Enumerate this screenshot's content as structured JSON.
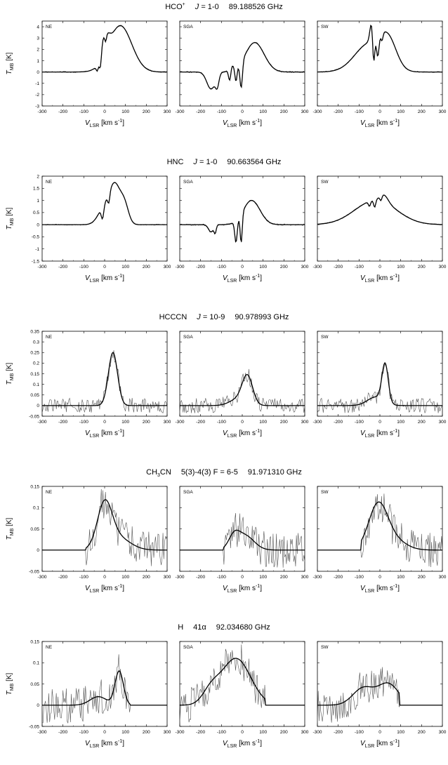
{
  "chart_data": [
    {
      "type": "line",
      "molecule": "HCO",
      "molecule_sup": "+",
      "transition_prefix": "J",
      "transition": "= 1-0",
      "frequency": "89.188526 GHz",
      "ylabel": "T",
      "ylabel_sub": "MB",
      "ylabel_unit": " [K]",
      "xlabel": "V",
      "xlabel_sub": "LSR",
      "xlabel_unit": " [km s",
      "xlabel_sup": "-1",
      "xlabel_end": "]",
      "xlim": [
        -300,
        300
      ],
      "ylim": [
        -3,
        4.5
      ],
      "xticks": [
        -300,
        -200,
        -100,
        0,
        100,
        200,
        300
      ],
      "yticks": [
        -3,
        -2,
        -1,
        0,
        1,
        2,
        3,
        4
      ],
      "panels": [
        {
          "name": "NE",
          "noise": 0.05,
          "components": [
            [
              75,
              4.1,
              55
            ],
            [
              10,
              1.2,
              15
            ],
            [
              -10,
              1.0,
              10
            ]
          ],
          "absorptions": [
            [
              -35,
              0.5,
              5
            ],
            [
              -20,
              1.2,
              5
            ],
            [
              5,
              0.6,
              4
            ]
          ],
          "cutoff": null
        },
        {
          "name": "SGA",
          "noise": 0.06,
          "components": [
            [
              60,
              2.6,
              45
            ],
            [
              -150,
              -1.5,
              20
            ],
            [
              -55,
              0.7,
              10
            ]
          ],
          "absorptions": [
            [
              -120,
              1.0,
              8
            ],
            [
              -60,
              1.4,
              6
            ],
            [
              -30,
              1.2,
              5
            ],
            [
              -5,
              2.3,
              6
            ]
          ],
          "cutoff": null
        },
        {
          "name": "SW",
          "noise": 0.05,
          "components": [
            [
              -50,
              2.5,
              70
            ],
            [
              40,
              2.3,
              40
            ],
            [
              -40,
              1.6,
              8
            ]
          ],
          "absorptions": [
            [
              -30,
              2.6,
              5
            ],
            [
              -10,
              1.8,
              6
            ],
            [
              10,
              0.7,
              5
            ]
          ],
          "cutoff": null
        }
      ]
    },
    {
      "type": "line",
      "molecule": "HNC",
      "molecule_sup": "",
      "transition_prefix": "J",
      "transition": "= 1-0",
      "frequency": "90.663564 GHz",
      "ylabel": "T",
      "ylabel_sub": "MB",
      "ylabel_unit": " [K]",
      "xlabel": "V",
      "xlabel_sub": "LSR",
      "xlabel_unit": " [km s",
      "xlabel_sup": "-1",
      "xlabel_end": "]",
      "xlim": [
        -300,
        300
      ],
      "ylim": [
        -1.5,
        2
      ],
      "xticks": [
        -300,
        -200,
        -100,
        0,
        100,
        200,
        300
      ],
      "yticks": [
        -1.5,
        -1,
        -0.5,
        0,
        0.5,
        1,
        1.5,
        2
      ],
      "panels": [
        {
          "name": "NE",
          "noise": 0.02,
          "components": [
            [
              50,
              1.5,
              25
            ],
            [
              95,
              0.8,
              20
            ],
            [
              0,
              0.7,
              30
            ]
          ],
          "absorptions": [
            [
              -10,
              0.5,
              6
            ],
            [
              20,
              0.4,
              5
            ]
          ],
          "cutoff": null
        },
        {
          "name": "SGA",
          "noise": 0.03,
          "components": [
            [
              45,
              1.0,
              40
            ],
            [
              -150,
              -0.3,
              12
            ]
          ],
          "absorptions": [
            [
              -130,
              0.3,
              5
            ],
            [
              -30,
              0.9,
              6
            ],
            [
              -5,
              1.2,
              5
            ]
          ],
          "cutoff": null
        },
        {
          "name": "SW",
          "noise": 0.02,
          "components": [
            [
              -20,
              1.0,
              100
            ],
            [
              20,
              0.3,
              20
            ]
          ],
          "absorptions": [
            [
              -50,
              0.2,
              5
            ],
            [
              -25,
              0.3,
              5
            ],
            [
              5,
              0.2,
              5
            ]
          ],
          "cutoff": null
        }
      ]
    },
    {
      "type": "line",
      "molecule": "HCCCN",
      "molecule_sup": "",
      "transition_prefix": "J",
      "transition": "= 10-9",
      "frequency": "90.978993 GHz",
      "ylabel": "T",
      "ylabel_sub": "MB",
      "ylabel_unit": " [K]",
      "xlabel": "V",
      "xlabel_sub": "LSR",
      "xlabel_unit": " [km s",
      "xlabel_sup": "-1",
      "xlabel_end": "]",
      "xlim": [
        -300,
        300
      ],
      "ylim": [
        -0.05,
        0.35
      ],
      "xticks": [
        -300,
        -200,
        -100,
        0,
        100,
        200,
        300
      ],
      "yticks": [
        -0.05,
        0,
        0.05,
        0.1,
        0.15,
        0.2,
        0.25,
        0.3,
        0.35
      ],
      "panels": [
        {
          "name": "NE",
          "noise": 0.012,
          "components": [
            [
              40,
              0.25,
              22
            ]
          ],
          "absorptions": [],
          "cutoff": null
        },
        {
          "name": "SGA",
          "noise": 0.012,
          "components": [
            [
              25,
              0.13,
              25
            ],
            [
              -20,
              0.03,
              40
            ]
          ],
          "absorptions": [],
          "cutoff": null
        },
        {
          "name": "SW",
          "noise": 0.012,
          "components": [
            [
              25,
              0.18,
              15
            ],
            [
              -20,
              0.04,
              40
            ]
          ],
          "absorptions": [],
          "cutoff": null
        }
      ]
    },
    {
      "type": "line",
      "molecule": "CH",
      "molecule_sub": "3",
      "molecule_rest": "CN",
      "molecule_sup": "",
      "transition_prefix": "",
      "transition": "5(3)-4(3) F = 6-5",
      "frequency": "91.971310 GHz",
      "ylabel": "T",
      "ylabel_sub": "MB",
      "ylabel_unit": " [K]",
      "xlabel": "V",
      "xlabel_sub": "LSR",
      "xlabel_unit": " [km s",
      "xlabel_sup": "-1",
      "xlabel_end": "]",
      "xlim": [
        -300,
        300
      ],
      "ylim": [
        -0.05,
        0.15
      ],
      "xticks": [
        -300,
        -200,
        -100,
        0,
        100,
        200,
        300
      ],
      "yticks": [
        -0.05,
        0,
        0.05,
        0.1,
        0.15
      ],
      "panels": [
        {
          "name": "NE",
          "noise": 0.014,
          "components": [
            [
              0,
              0.1,
              35
            ],
            [
              60,
              0.03,
              60
            ]
          ],
          "absorptions": [],
          "cutoff": -90
        },
        {
          "name": "SGA",
          "noise": 0.014,
          "components": [
            [
              10,
              0.035,
              45
            ],
            [
              -40,
              0.025,
              25
            ]
          ],
          "absorptions": [],
          "cutoff": -90
        },
        {
          "name": "SW",
          "noise": 0.014,
          "components": [
            [
              -10,
              0.1,
              45
            ],
            [
              60,
              0.025,
              60
            ]
          ],
          "absorptions": [],
          "cutoff": -90
        }
      ]
    },
    {
      "type": "line",
      "molecule": "H",
      "molecule_sup": "",
      "transition_prefix": "",
      "transition": "41α",
      "frequency": "92.034680 GHz",
      "ylabel": "T",
      "ylabel_sub": "MB",
      "ylabel_unit": " [K]",
      "xlabel": "V",
      "xlabel_sub": "LSR",
      "xlabel_unit": " [km s",
      "xlabel_sup": "-1",
      "xlabel_end": "]",
      "xlim": [
        -300,
        300
      ],
      "ylim": [
        -0.05,
        0.15
      ],
      "xticks": [
        -300,
        -200,
        -100,
        0,
        100,
        200,
        300
      ],
      "yticks": [
        -0.05,
        0,
        0.05,
        0.1,
        0.15
      ],
      "panels": [
        {
          "name": "NE",
          "noise": 0.014,
          "components": [
            [
              70,
              0.08,
              20
            ],
            [
              -30,
              0.02,
              40
            ]
          ],
          "absorptions": [],
          "cutoff": 120,
          "cutoff_side": "right"
        },
        {
          "name": "SGA",
          "noise": 0.014,
          "components": [
            [
              -30,
              0.11,
              70
            ],
            [
              -150,
              0.03,
              40
            ]
          ],
          "absorptions": [],
          "cutoff": 110,
          "cutoff_side": "right"
        },
        {
          "name": "SW",
          "noise": 0.014,
          "components": [
            [
              40,
              0.05,
              50
            ],
            [
              -80,
              0.04,
              50
            ]
          ],
          "absorptions": [],
          "cutoff": 95,
          "cutoff_side": "right"
        }
      ]
    }
  ]
}
